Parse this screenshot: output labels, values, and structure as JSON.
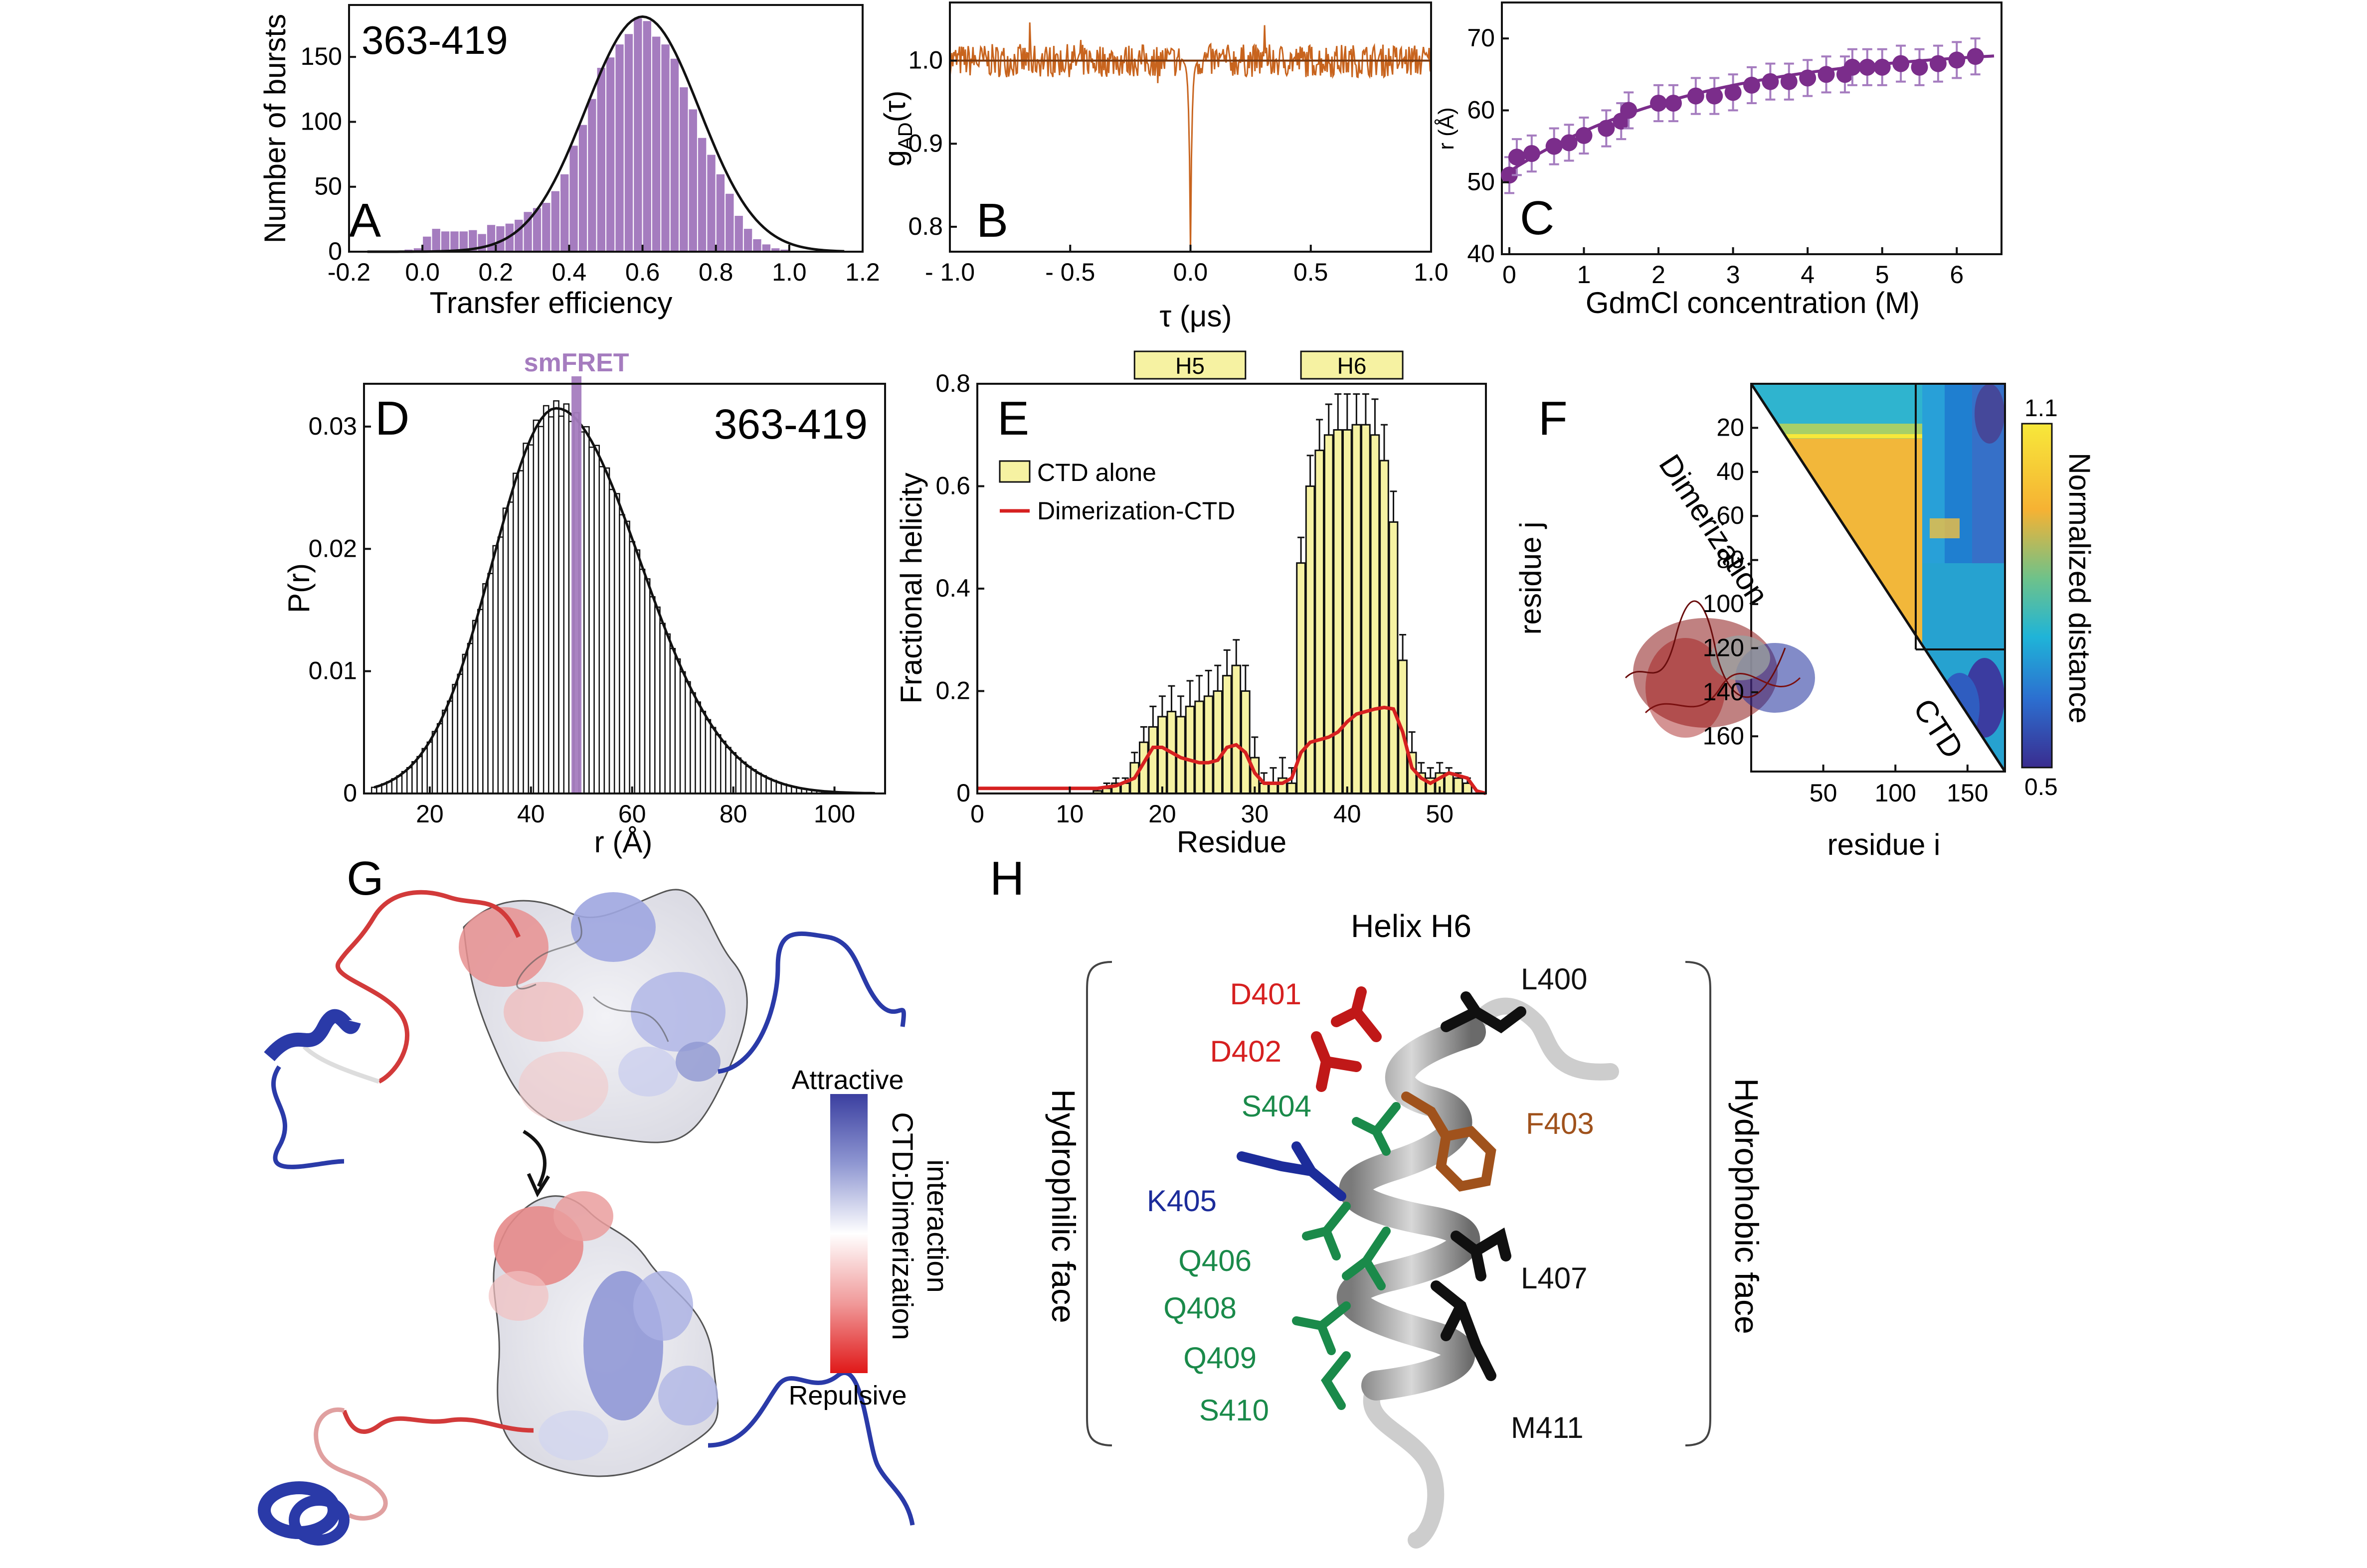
{
  "figure": {
    "panel_letters": {
      "A": "A",
      "B": "B",
      "C": "C",
      "D": "D",
      "E": "E",
      "F": "F",
      "G": "G",
      "H": "H"
    },
    "colors": {
      "purple": "#7b2d8b",
      "hist_purple": "#a57cbf",
      "orange": "#c8641e",
      "yellow": "#f6f2a2",
      "red": "#d62020",
      "green": "#1a8a4a",
      "blue": "#1c2c9a",
      "brown": "#a0521c"
    }
  },
  "chart_data": [
    {
      "id": "A",
      "type": "bar",
      "annotation": "363-419",
      "xlabel": "Transfer efficiency",
      "ylabel": "Number of bursts",
      "xlim": [
        -0.2,
        1.2
      ],
      "ylim": [
        0,
        190
      ],
      "xticks": [
        "-0.2",
        "0.0",
        "0.2",
        "0.4",
        "0.6",
        "0.8",
        "1.0",
        "1.2"
      ],
      "yticks": [
        "0",
        "50",
        "100",
        "150"
      ],
      "bin_width": 0.025,
      "bin_centers": [
        -0.1125,
        -0.0875,
        -0.0625,
        -0.0375,
        -0.0125,
        0.0125,
        0.0375,
        0.0625,
        0.0875,
        0.1125,
        0.1375,
        0.1625,
        0.1875,
        0.2125,
        0.2375,
        0.2625,
        0.2875,
        0.3125,
        0.3375,
        0.3625,
        0.3875,
        0.4125,
        0.4375,
        0.4625,
        0.4875,
        0.5125,
        0.5375,
        0.5625,
        0.5875,
        0.6125,
        0.6375,
        0.6625,
        0.6875,
        0.7125,
        0.7375,
        0.7625,
        0.7875,
        0.8125,
        0.8375,
        0.8625,
        0.8875,
        0.9125,
        0.9375,
        0.9625,
        0.9875,
        1.0125
      ],
      "counts": [
        0,
        0,
        1,
        2,
        3,
        12,
        18,
        16,
        16,
        16,
        17,
        14,
        21,
        20,
        22,
        25,
        31,
        34,
        38,
        47,
        60,
        82,
        98,
        118,
        142,
        150,
        160,
        168,
        180,
        178,
        166,
        160,
        149,
        127,
        110,
        88,
        75,
        60,
        45,
        28,
        18,
        10,
        6,
        3,
        2,
        1
      ],
      "fit": "gaussian",
      "fit_center": 0.6,
      "fit_sigma": 0.155,
      "fit_amplitude": 181
    },
    {
      "id": "B",
      "type": "line",
      "xlabel": "τ (μs)",
      "ylabel": "g",
      "ylabel_sub": "AD",
      "ylabel_suffix": "(τ)",
      "xlim": [
        -1.0,
        1.0
      ],
      "ylim": [
        0.77,
        1.07
      ],
      "xticks": [
        "- 1.0",
        "- 0.5",
        "0.0",
        "0.5",
        "1.0"
      ],
      "yticks": [
        "0.8",
        "0.9",
        "1.0"
      ],
      "baseline": 1.0,
      "dip_at": 0.0,
      "dip_min": 0.77,
      "noise_amplitude": 0.02
    },
    {
      "id": "C",
      "type": "scatter",
      "xlabel": "GdmCl concentration (M)",
      "ylabel": "r (Å)",
      "xlim": [
        -0.1,
        6.6
      ],
      "ylim": [
        40,
        75
      ],
      "xticks": [
        "0",
        "1",
        "2",
        "3",
        "4",
        "5",
        "6"
      ],
      "yticks": [
        "40",
        "50",
        "60",
        "70"
      ],
      "x": [
        0.0,
        0.1,
        0.3,
        0.6,
        0.8,
        1.0,
        1.3,
        1.5,
        1.6,
        2.0,
        2.2,
        2.5,
        2.75,
        3.0,
        3.25,
        3.5,
        3.75,
        4.0,
        4.25,
        4.5,
        4.6,
        4.8,
        5.0,
        5.25,
        5.5,
        5.75,
        6.0,
        6.25
      ],
      "y": [
        51,
        53.5,
        54,
        55,
        55.5,
        56.5,
        57.5,
        58.5,
        60,
        61,
        61,
        62,
        62,
        62.5,
        63.5,
        64,
        64,
        64.5,
        65,
        65,
        66,
        66,
        66,
        66.5,
        66,
        66.5,
        67,
        67.5
      ],
      "error": 2.5,
      "fit": "smooth"
    },
    {
      "id": "D",
      "type": "bar",
      "annotation": "363-419",
      "marker_label": "smFRET",
      "marker_x": 49,
      "xlabel": "r (Å)",
      "ylabel": "P(r)",
      "xlim": [
        7,
        110
      ],
      "ylim": [
        0,
        0.0335
      ],
      "xticks": [
        "20",
        "40",
        "60",
        "80",
        "100"
      ],
      "yticks": [
        "0",
        "0.01",
        "0.02",
        "0.03"
      ],
      "distribution": "skewed",
      "peak_x": 45,
      "peak_y": 0.0315,
      "sigma_left": 12.5,
      "sigma_right": 16.5
    },
    {
      "id": "E",
      "type": "bar",
      "xlabel": "Residue",
      "ylabel": "Fractional helicity",
      "xlim": [
        0,
        55
      ],
      "ylim": [
        0,
        0.8
      ],
      "xticks": [
        "0",
        "10",
        "20",
        "30",
        "40",
        "50"
      ],
      "yticks": [
        "0",
        "0.2",
        "0.4",
        "0.6",
        "0.8"
      ],
      "helix_labels": [
        "H5",
        "H6"
      ],
      "helix_ranges": [
        [
          17,
          29
        ],
        [
          35,
          46
        ]
      ],
      "series": [
        {
          "name": "CTD alone",
          "residues": [
            1,
            2,
            3,
            4,
            5,
            6,
            7,
            8,
            9,
            10,
            11,
            12,
            13,
            14,
            15,
            16,
            17,
            18,
            19,
            20,
            21,
            22,
            23,
            24,
            25,
            26,
            27,
            28,
            29,
            30,
            31,
            32,
            33,
            34,
            35,
            36,
            37,
            38,
            39,
            40,
            41,
            42,
            43,
            44,
            45,
            46,
            47,
            48,
            49,
            50,
            51,
            52,
            53,
            54
          ],
          "values": [
            0,
            0,
            0,
            0,
            0,
            0,
            0,
            0,
            0,
            0,
            0,
            0,
            0.005,
            0.01,
            0.02,
            0.02,
            0.06,
            0.1,
            0.13,
            0.15,
            0.16,
            0.15,
            0.17,
            0.18,
            0.19,
            0.2,
            0.23,
            0.25,
            0.2,
            0.07,
            0.02,
            0.02,
            0.03,
            0.02,
            0.45,
            0.6,
            0.67,
            0.7,
            0.71,
            0.71,
            0.72,
            0.72,
            0.7,
            0.65,
            0.53,
            0.26,
            0.08,
            0.04,
            0.03,
            0.04,
            0.04,
            0.03,
            0.02,
            0
          ],
          "error_plus": [
            0,
            0,
            0,
            0,
            0,
            0,
            0,
            0,
            0,
            0,
            0,
            0,
            0.005,
            0.01,
            0.01,
            0.01,
            0.02,
            0.03,
            0.04,
            0.04,
            0.05,
            0.04,
            0.05,
            0.05,
            0.05,
            0.05,
            0.05,
            0.05,
            0.05,
            0.04,
            0.02,
            0.03,
            0.04,
            0.03,
            0.05,
            0.06,
            0.06,
            0.06,
            0.07,
            0.07,
            0.06,
            0.06,
            0.07,
            0.07,
            0.06,
            0.05,
            0.04,
            0.02,
            0.02,
            0.02,
            0.01,
            0.01,
            0.01,
            0
          ]
        },
        {
          "name": "Dimerization-CTD",
          "x": [
            0,
            10,
            13,
            15,
            17,
            18,
            19,
            20,
            21,
            22,
            23,
            24,
            25,
            26,
            27,
            28,
            29,
            30,
            31,
            33,
            34,
            35,
            36,
            37,
            38,
            39,
            40,
            41,
            42,
            43,
            44,
            45,
            46,
            47,
            48,
            49,
            50,
            51,
            52,
            53,
            54,
            55
          ],
          "y": [
            0.01,
            0.01,
            0.01,
            0.015,
            0.03,
            0.06,
            0.09,
            0.09,
            0.08,
            0.07,
            0.065,
            0.06,
            0.06,
            0.065,
            0.09,
            0.095,
            0.08,
            0.04,
            0.02,
            0.02,
            0.03,
            0.08,
            0.1,
            0.105,
            0.11,
            0.12,
            0.14,
            0.155,
            0.16,
            0.165,
            0.168,
            0.165,
            0.12,
            0.05,
            0.03,
            0.02,
            0.03,
            0.04,
            0.035,
            0.03,
            0.005,
            0.0
          ]
        }
      ]
    },
    {
      "id": "F",
      "type": "heatmap",
      "xlabel": "residue i",
      "ylabel": "residue j",
      "colorbar_label": "Normalized distance",
      "colorbar_max": "1.1",
      "colorbar_min": "0.5",
      "region_labels": [
        "Dimerization",
        "CTD"
      ],
      "xticks": [
        "50",
        "100",
        "150"
      ],
      "yticks": [
        "20",
        "40",
        "60",
        "80",
        "100",
        "120",
        "140",
        "160"
      ],
      "n_residues": 176,
      "boundary_residue": 113
    }
  ],
  "panel_G": {
    "scale_top": "Attractive",
    "scale_bottom": "Repulsive",
    "scale_title_line1": "CTD:Dimerization",
    "scale_title_line2": "interaction"
  },
  "panel_H": {
    "title": "Helix H6",
    "left_label": "Hydrophilic face",
    "right_label": "Hydrophobic face",
    "residues_left": [
      {
        "label": "D401",
        "color": "red"
      },
      {
        "label": "D402",
        "color": "red"
      },
      {
        "label": "S404",
        "color": "green"
      },
      {
        "label": "K405",
        "color": "blue"
      },
      {
        "label": "Q406",
        "color": "green"
      },
      {
        "label": "Q408",
        "color": "green"
      },
      {
        "label": "Q409",
        "color": "green"
      },
      {
        "label": "S410",
        "color": "green"
      }
    ],
    "residues_right": [
      {
        "label": "L400",
        "color": "black"
      },
      {
        "label": "F403",
        "color": "brown"
      },
      {
        "label": "L407",
        "color": "black"
      },
      {
        "label": "M411",
        "color": "black"
      }
    ]
  }
}
